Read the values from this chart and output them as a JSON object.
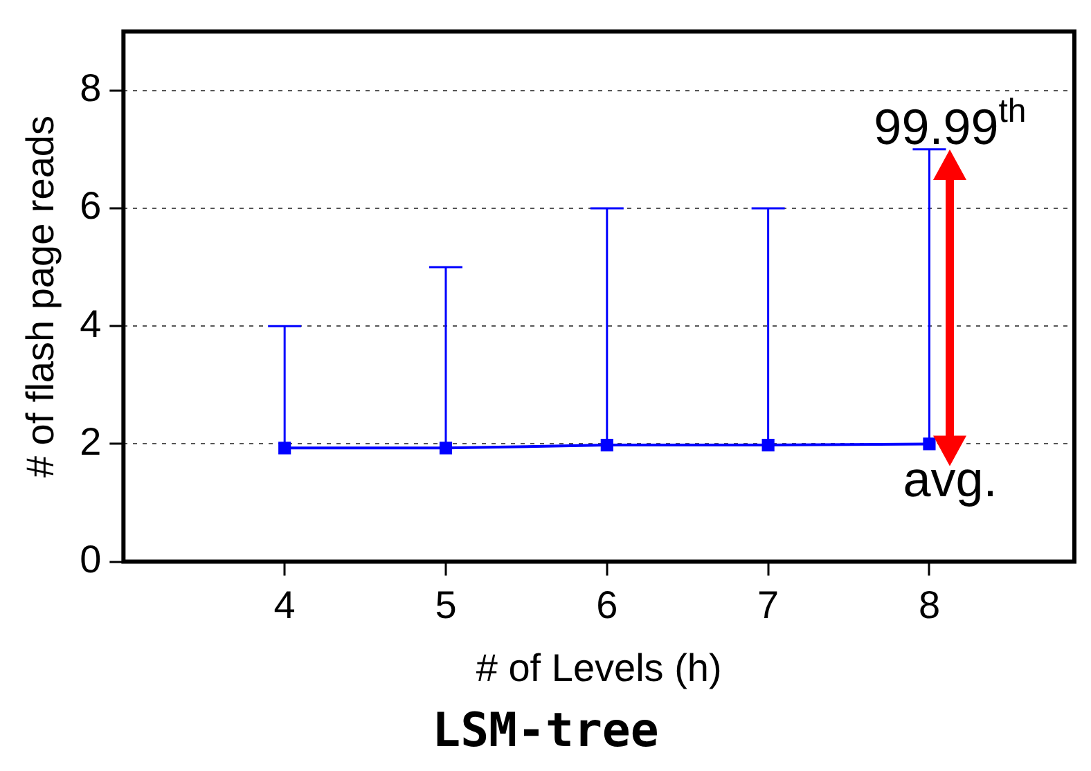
{
  "chart_data": {
    "type": "line",
    "title": "LSM-tree",
    "xlabel": "# of Levels (h)",
    "ylabel": "# of flash page reads",
    "x": [
      4,
      5,
      6,
      7,
      8
    ],
    "series": [
      {
        "color": "#0000ff",
        "values": [
          1.93,
          1.93,
          1.98,
          1.98,
          2.0
        ],
        "errors": [
          [
            1.93,
            4
          ],
          [
            1.93,
            5
          ],
          [
            1.98,
            6
          ],
          [
            1.98,
            6
          ],
          [
            2.0,
            7
          ]
        ]
      }
    ],
    "xlim": [
      3,
      8.9
    ],
    "xticks": [
      4,
      5,
      6,
      7,
      8
    ],
    "ylim": [
      0,
      9
    ],
    "yticks": [
      0,
      2,
      4,
      6,
      8
    ],
    "grid": "y",
    "legend": false,
    "marker": "square",
    "line_style": "solid",
    "annotations": [
      "99.99$^{th}$",
      {
        "text": "avg.",
        "x": 8,
        "y": 2.0
      }
    ]
  }
}
